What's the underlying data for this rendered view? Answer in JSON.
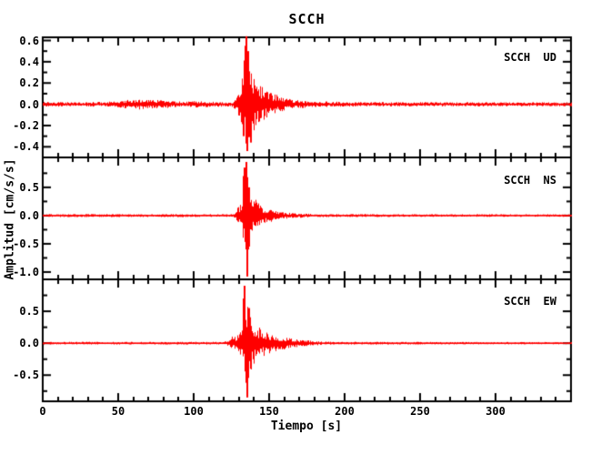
{
  "colors": {
    "trace": "#ff0000",
    "axes": "#000000",
    "background": "#ffffff"
  },
  "chart_data": {
    "type": "line",
    "subtype": "seismogram",
    "title": "SCCH",
    "xlabel": "Tiempo [s]",
    "ylabel": "Amplitud [cm/s/s]",
    "station": "SCCH",
    "components": [
      "UD",
      "NS",
      "EW"
    ],
    "x_range": [
      0,
      350
    ],
    "x_major_ticks": [
      0,
      50,
      100,
      150,
      200,
      250,
      300
    ],
    "x_tick_labels": [
      "0",
      "50",
      "100",
      "150",
      "200",
      "250",
      "300"
    ],
    "x_minor_step": 10,
    "grid": false,
    "legend_position": "top-right-inside-each-panel",
    "panels": [
      {
        "label": "SCCH  UD",
        "station": "SCCH",
        "component": "UD",
        "ylim": [
          -0.5,
          0.63
        ],
        "yticks": [
          0.6,
          0.4,
          0.2,
          0.0,
          -0.2,
          -0.4
        ],
        "ytick_labels": [
          "0.6",
          "0.4",
          "0.2",
          "0.0",
          "-0.2",
          "-0.4"
        ],
        "y_minor_step": 0.1,
        "noise_amplitude": 0.02,
        "event_onset_t": 127,
        "peak": {
          "t": 135,
          "max": 0.64,
          "min": -0.46
        },
        "envelope_pos": [
          [
            0,
            0.022
          ],
          [
            40,
            0.022
          ],
          [
            50,
            0.03
          ],
          [
            57,
            0.045
          ],
          [
            63,
            0.05
          ],
          [
            70,
            0.04
          ],
          [
            78,
            0.045
          ],
          [
            85,
            0.028
          ],
          [
            95,
            0.025
          ],
          [
            100,
            0.035
          ],
          [
            103,
            0.028
          ],
          [
            110,
            0.025
          ],
          [
            118,
            0.022
          ],
          [
            126,
            0.025
          ],
          [
            127.5,
            0.07
          ],
          [
            129,
            0.11
          ],
          [
            131,
            0.16
          ],
          [
            132.5,
            0.3
          ],
          [
            133.8,
            0.55
          ],
          [
            135,
            0.64
          ],
          [
            136,
            0.52
          ],
          [
            137.5,
            0.36
          ],
          [
            139,
            0.28
          ],
          [
            141,
            0.24
          ],
          [
            143.5,
            0.19
          ],
          [
            146,
            0.155
          ],
          [
            149,
            0.125
          ],
          [
            152,
            0.105
          ],
          [
            156,
            0.085
          ],
          [
            160,
            0.065
          ],
          [
            165,
            0.05
          ],
          [
            170,
            0.04
          ],
          [
            176,
            0.032
          ],
          [
            184,
            0.027
          ],
          [
            195,
            0.024
          ],
          [
            215,
            0.021
          ],
          [
            260,
            0.02
          ],
          [
            350,
            0.019
          ]
        ],
        "envelope_neg": [
          [
            0,
            0.022
          ],
          [
            40,
            0.022
          ],
          [
            50,
            0.03
          ],
          [
            57,
            0.045
          ],
          [
            63,
            0.05
          ],
          [
            70,
            0.04
          ],
          [
            78,
            0.045
          ],
          [
            85,
            0.028
          ],
          [
            95,
            0.025
          ],
          [
            100,
            0.035
          ],
          [
            103,
            0.028
          ],
          [
            110,
            0.025
          ],
          [
            118,
            0.022
          ],
          [
            126,
            0.025
          ],
          [
            127.5,
            0.07
          ],
          [
            129,
            0.1
          ],
          [
            131,
            0.15
          ],
          [
            132.5,
            0.28
          ],
          [
            133.8,
            0.4
          ],
          [
            135,
            0.46
          ],
          [
            136,
            0.42
          ],
          [
            137.5,
            0.33
          ],
          [
            139,
            0.26
          ],
          [
            141,
            0.22
          ],
          [
            143.5,
            0.18
          ],
          [
            146,
            0.15
          ],
          [
            149,
            0.12
          ],
          [
            152,
            0.1
          ],
          [
            156,
            0.08
          ],
          [
            160,
            0.06
          ],
          [
            165,
            0.048
          ],
          [
            170,
            0.038
          ],
          [
            176,
            0.03
          ],
          [
            184,
            0.026
          ],
          [
            195,
            0.023
          ],
          [
            215,
            0.021
          ],
          [
            260,
            0.02
          ],
          [
            350,
            0.019
          ]
        ],
        "spikes": [
          [
            133.4,
            -0.3
          ],
          [
            134.2,
            0.55
          ],
          [
            135,
            0.64
          ],
          [
            135.7,
            -0.44
          ],
          [
            136.3,
            0.5
          ],
          [
            137.8,
            -0.36
          ]
        ]
      },
      {
        "label": "SCCH  NS",
        "station": "SCCH",
        "component": "NS",
        "ylim": [
          -1.13,
          1.03
        ],
        "yticks": [
          0.5,
          0.0,
          -0.5,
          -1.0
        ],
        "ytick_labels": [
          "0.5",
          "0.0",
          "-0.5",
          "-1.0"
        ],
        "y_minor_step": 0.25,
        "noise_amplitude": 0.025,
        "event_onset_t": 127,
        "peak": {
          "t": 135,
          "max": 0.95,
          "min": -1.08
        },
        "envelope_pos": [
          [
            0,
            0.025
          ],
          [
            30,
            0.027
          ],
          [
            70,
            0.025
          ],
          [
            100,
            0.027
          ],
          [
            120,
            0.025
          ],
          [
            126,
            0.025
          ],
          [
            127.5,
            0.09
          ],
          [
            129,
            0.14
          ],
          [
            131,
            0.2
          ],
          [
            132.5,
            0.45
          ],
          [
            133.8,
            0.8
          ],
          [
            134.8,
            0.95
          ],
          [
            136,
            0.62
          ],
          [
            137.5,
            0.45
          ],
          [
            139,
            0.35
          ],
          [
            141,
            0.28
          ],
          [
            143.5,
            0.21
          ],
          [
            146,
            0.165
          ],
          [
            149,
            0.13
          ],
          [
            152,
            0.105
          ],
          [
            155,
            0.085
          ],
          [
            158,
            0.07
          ],
          [
            162,
            0.055
          ],
          [
            167,
            0.045
          ],
          [
            173,
            0.036
          ],
          [
            180,
            0.03
          ],
          [
            190,
            0.027
          ],
          [
            210,
            0.025
          ],
          [
            260,
            0.024
          ],
          [
            350,
            0.023
          ]
        ],
        "envelope_neg": [
          [
            0,
            0.025
          ],
          [
            30,
            0.027
          ],
          [
            70,
            0.025
          ],
          [
            100,
            0.027
          ],
          [
            120,
            0.025
          ],
          [
            126,
            0.025
          ],
          [
            127.5,
            0.09
          ],
          [
            129,
            0.13
          ],
          [
            131,
            0.19
          ],
          [
            132.5,
            0.4
          ],
          [
            134,
            0.65
          ],
          [
            135.4,
            1.08
          ],
          [
            136.5,
            0.6
          ],
          [
            138,
            0.42
          ],
          [
            139.5,
            0.33
          ],
          [
            141.5,
            0.26
          ],
          [
            144,
            0.2
          ],
          [
            146.5,
            0.16
          ],
          [
            149.5,
            0.125
          ],
          [
            152.5,
            0.1
          ],
          [
            155.5,
            0.082
          ],
          [
            159,
            0.068
          ],
          [
            163,
            0.054
          ],
          [
            168,
            0.044
          ],
          [
            174,
            0.035
          ],
          [
            181,
            0.029
          ],
          [
            192,
            0.026
          ],
          [
            212,
            0.024
          ],
          [
            260,
            0.023
          ],
          [
            350,
            0.022
          ]
        ],
        "spikes": [
          [
            133.2,
            0.7
          ],
          [
            133.9,
            0.85
          ],
          [
            134.7,
            0.95
          ],
          [
            135.4,
            -1.08
          ],
          [
            136.2,
            -0.6
          ],
          [
            137,
            0.5
          ]
        ]
      },
      {
        "label": "SCCH  EW",
        "station": "SCCH",
        "component": "EW",
        "ylim": [
          -0.91,
          1.0
        ],
        "yticks": [
          0.5,
          0.0,
          -0.5
        ],
        "ytick_labels": [
          "0.5",
          "0.0",
          "-0.5"
        ],
        "y_minor_step": 0.25,
        "noise_amplitude": 0.02,
        "event_onset_t": 124,
        "peak": {
          "t": 134,
          "max": 0.9,
          "min": -0.85
        },
        "envelope_pos": [
          [
            0,
            0.02
          ],
          [
            35,
            0.022
          ],
          [
            80,
            0.02
          ],
          [
            110,
            0.022
          ],
          [
            120,
            0.02
          ],
          [
            122.5,
            0.05
          ],
          [
            124.5,
            0.12
          ],
          [
            126,
            0.09
          ],
          [
            128,
            0.12
          ],
          [
            130,
            0.16
          ],
          [
            131.5,
            0.25
          ],
          [
            132.8,
            0.55
          ],
          [
            133.8,
            0.9
          ],
          [
            135,
            0.65
          ],
          [
            136.5,
            0.5
          ],
          [
            138,
            0.4
          ],
          [
            140,
            0.32
          ],
          [
            142.5,
            0.26
          ],
          [
            145,
            0.215
          ],
          [
            148,
            0.18
          ],
          [
            151,
            0.15
          ],
          [
            154.5,
            0.125
          ],
          [
            158,
            0.105
          ],
          [
            161.5,
            0.09
          ],
          [
            165,
            0.075
          ],
          [
            169,
            0.06
          ],
          [
            173.5,
            0.048
          ],
          [
            178,
            0.038
          ],
          [
            184,
            0.03
          ],
          [
            192,
            0.025
          ],
          [
            205,
            0.022
          ],
          [
            245,
            0.02
          ],
          [
            350,
            0.018
          ]
        ],
        "envelope_neg": [
          [
            0,
            0.02
          ],
          [
            35,
            0.022
          ],
          [
            80,
            0.02
          ],
          [
            110,
            0.022
          ],
          [
            120,
            0.02
          ],
          [
            122.5,
            0.045
          ],
          [
            124.5,
            0.1
          ],
          [
            126,
            0.08
          ],
          [
            128,
            0.11
          ],
          [
            130,
            0.15
          ],
          [
            131.5,
            0.24
          ],
          [
            133,
            0.5
          ],
          [
            134.5,
            0.7
          ],
          [
            135.6,
            0.85
          ],
          [
            137,
            0.48
          ],
          [
            138.5,
            0.38
          ],
          [
            140.5,
            0.31
          ],
          [
            143,
            0.25
          ],
          [
            145.5,
            0.21
          ],
          [
            148.5,
            0.175
          ],
          [
            151.5,
            0.145
          ],
          [
            155,
            0.12
          ],
          [
            158.5,
            0.1
          ],
          [
            162,
            0.088
          ],
          [
            165.5,
            0.072
          ],
          [
            169.5,
            0.058
          ],
          [
            174,
            0.046
          ],
          [
            178.5,
            0.036
          ],
          [
            184.5,
            0.029
          ],
          [
            192,
            0.024
          ],
          [
            205,
            0.021
          ],
          [
            245,
            0.019
          ],
          [
            350,
            0.017
          ]
        ],
        "spikes": [
          [
            133.3,
            0.7
          ],
          [
            133.9,
            0.9
          ],
          [
            134.8,
            -0.62
          ],
          [
            135.5,
            -0.85
          ],
          [
            136.6,
            0.55
          ],
          [
            138,
            -0.4
          ]
        ]
      }
    ]
  }
}
